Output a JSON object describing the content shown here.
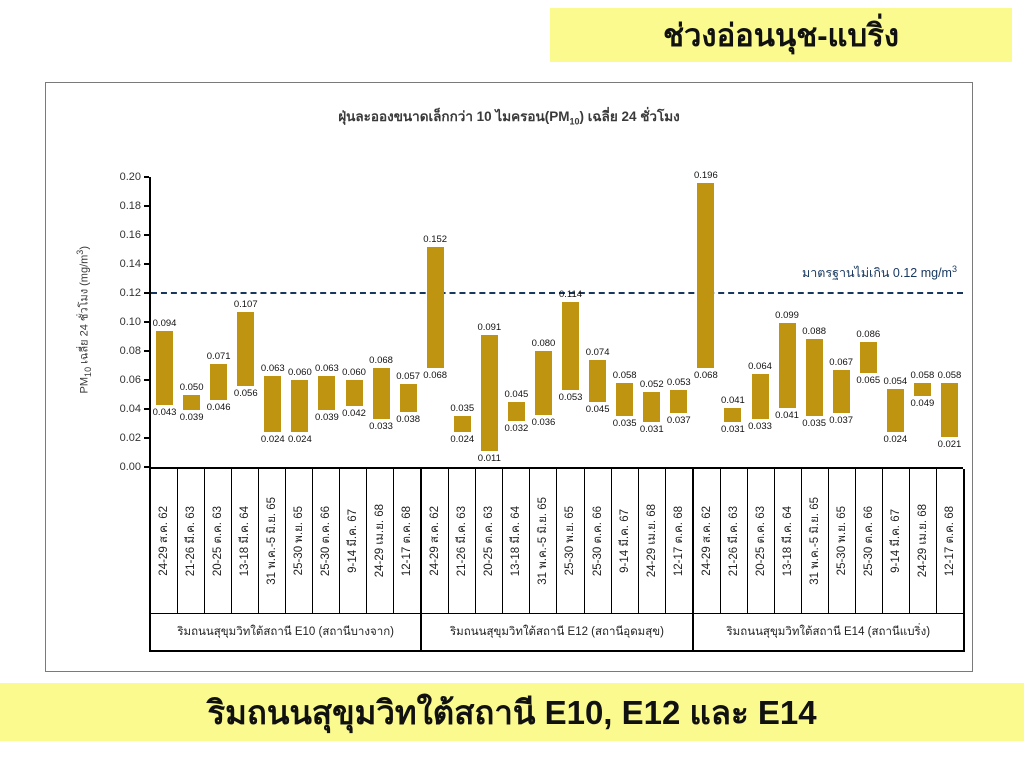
{
  "slide": {
    "top_banner": "ช่วงอ่อนนุช-แบริ่ง",
    "bottom_banner": "ริมถนนสุขุมวิทใต้สถานี E10, E12 และ E14"
  },
  "colors": {
    "banner_bg": "#FAFA8F",
    "bar": "#BF9410",
    "standard_line": "#17375E",
    "chart_border": "#7a7a7a"
  },
  "chart_data": {
    "type": "bar",
    "bar_style": "floating-range",
    "title": {
      "prefix": "ฝุ่นละอองขนาดเล็กกว่า 10 ไมครอน(PM",
      "sub": "10",
      "suffix": ") เฉลี่ย 24 ชั่วโมง"
    },
    "ylabel": {
      "prefix": "PM",
      "sub": "10",
      "mid": " เฉลี่ย 24 ชั่วโมง (mg/m",
      "sup": "3",
      "suffix": ")"
    },
    "ylim": [
      0,
      0.2
    ],
    "ytick_step": 0.02,
    "grid": false,
    "legend": false,
    "standard_line": {
      "value": 0.12,
      "label_prefix": "มาตรฐานไม่เกิน 0.12 mg/m",
      "label_sup": "3"
    },
    "categories": [
      "24-29 ส.ค. 62",
      "21-26 มี.ค. 63",
      "20-25 ต.ค. 63",
      "13-18 มี.ค. 64",
      "31 พ.ค.-5 มิ.ย. 65",
      "25-30 พ.ย. 65",
      "25-30 ต.ค. 66",
      "9-14 มี.ค. 67",
      "24-29 เม.ย. 68",
      "12-17 ต.ค. 68"
    ],
    "groups": [
      {
        "label": "ริมถนนสุขุมวิทใต้สถานี E10 (สถานีบางจาก)",
        "bars": [
          {
            "min": 0.043,
            "max": 0.094
          },
          {
            "min": 0.039,
            "max": 0.05
          },
          {
            "min": 0.046,
            "max": 0.071
          },
          {
            "min": 0.056,
            "max": 0.107
          },
          {
            "min": 0.024,
            "max": 0.063
          },
          {
            "min": 0.024,
            "max": 0.06
          },
          {
            "min": 0.039,
            "max": 0.063
          },
          {
            "min": 0.042,
            "max": 0.06
          },
          {
            "min": 0.033,
            "max": 0.068
          },
          {
            "min": 0.038,
            "max": 0.057
          }
        ]
      },
      {
        "label": "ริมถนนสุขุมวิทใต้สถานี E12 (สถานีอุดมสุข)",
        "bars": [
          {
            "min": 0.068,
            "max": 0.152
          },
          {
            "min": 0.024,
            "max": 0.035
          },
          {
            "min": 0.011,
            "max": 0.091
          },
          {
            "min": 0.032,
            "max": 0.045
          },
          {
            "min": 0.036,
            "max": 0.08
          },
          {
            "min": 0.053,
            "max": 0.114
          },
          {
            "min": 0.045,
            "max": 0.074
          },
          {
            "min": 0.035,
            "max": 0.058
          },
          {
            "min": 0.031,
            "max": 0.052
          },
          {
            "min": 0.037,
            "max": 0.053
          }
        ]
      },
      {
        "label": "ริมถนนสุขุมวิทใต้สถานี E14 (สถานีแบริ่ง)",
        "bars": [
          {
            "min": 0.068,
            "max": 0.196
          },
          {
            "min": 0.031,
            "max": 0.041
          },
          {
            "min": 0.033,
            "max": 0.064
          },
          {
            "min": 0.041,
            "max": 0.099
          },
          {
            "min": 0.035,
            "max": 0.088
          },
          {
            "min": 0.037,
            "max": 0.067
          },
          {
            "min": 0.065,
            "max": 0.086
          },
          {
            "min": 0.024,
            "max": 0.054
          },
          {
            "min": 0.049,
            "max": 0.058
          },
          {
            "min": 0.021,
            "max": 0.058
          }
        ]
      }
    ]
  }
}
